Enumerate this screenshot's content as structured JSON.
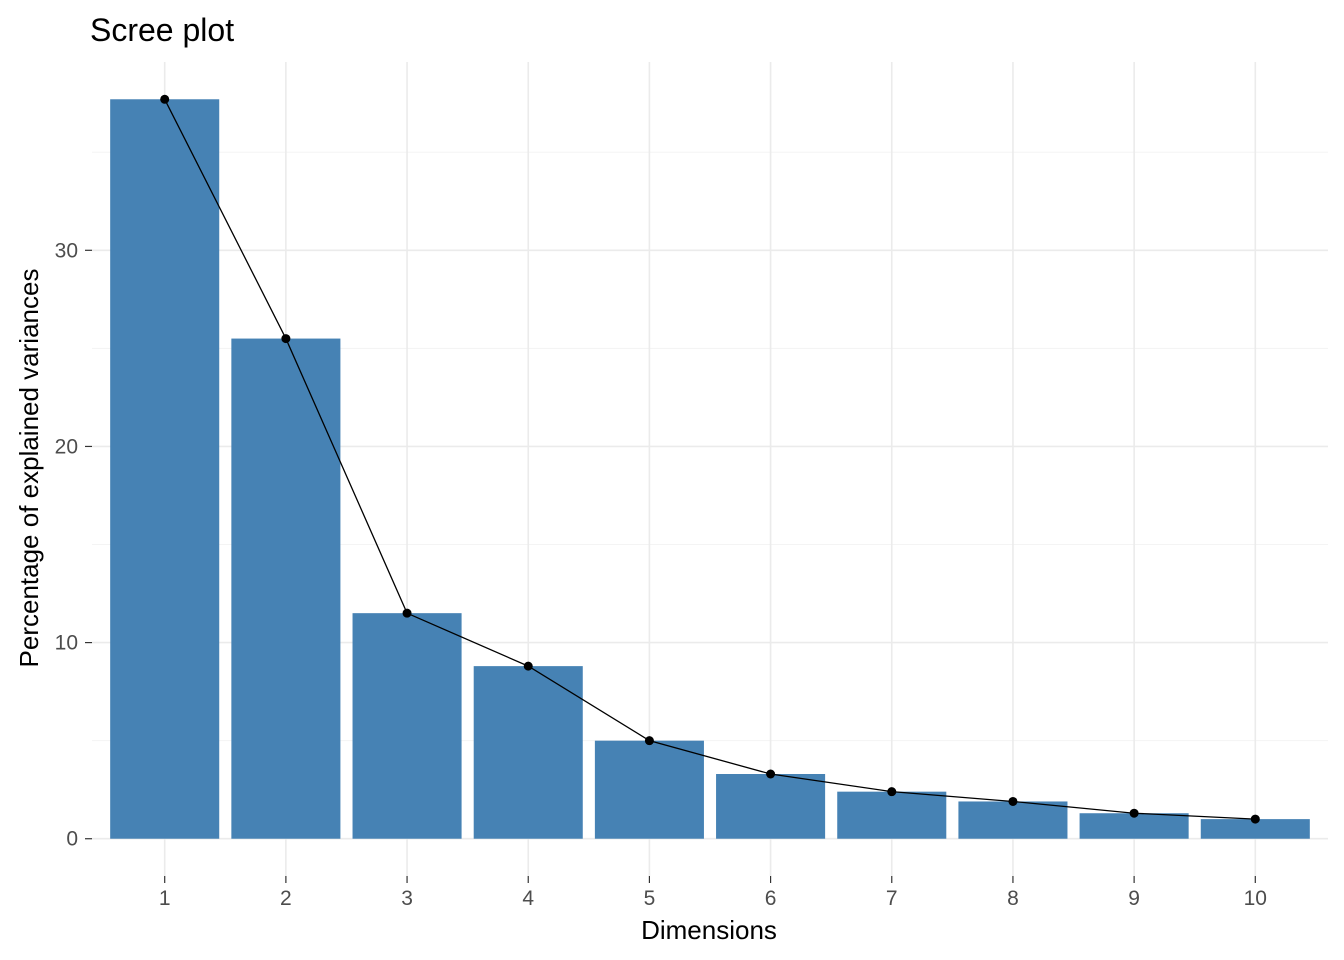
{
  "chart_data": {
    "type": "bar",
    "title": "Scree plot",
    "xlabel": "Dimensions",
    "ylabel": "Percentage of explained variances",
    "categories": [
      "1",
      "2",
      "3",
      "4",
      "5",
      "6",
      "7",
      "8",
      "9",
      "10"
    ],
    "values": [
      37.7,
      25.5,
      11.5,
      8.8,
      5.0,
      3.3,
      2.4,
      1.9,
      1.3,
      1.0
    ],
    "overlay": "line-with-points",
    "yticks": [
      "0",
      "10",
      "20",
      "30"
    ],
    "ylim": [
      -1.9,
      39.6
    ],
    "grid": true,
    "legend": "none",
    "colors": {
      "bar": "#4682b4",
      "line": "#000000",
      "point": "#000000",
      "grid": "#ebebeb",
      "tick_label": "#4d4d4d"
    }
  }
}
